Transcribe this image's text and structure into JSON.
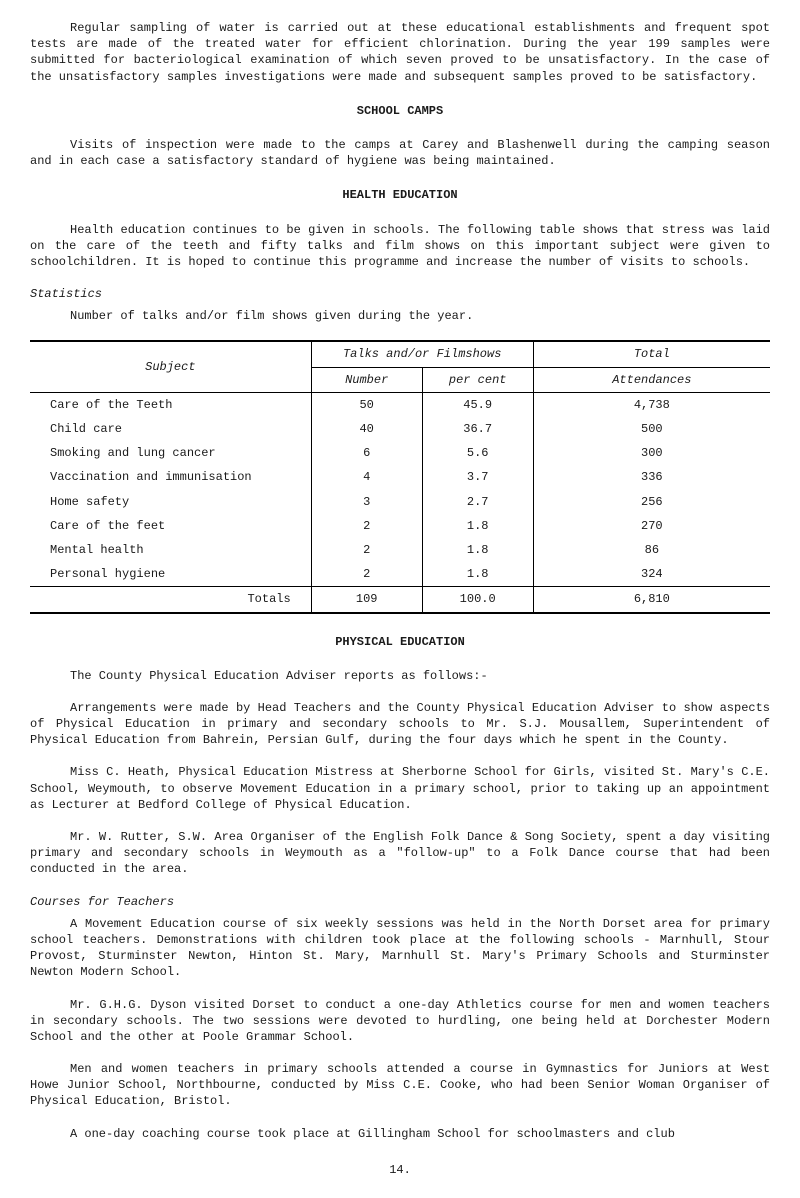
{
  "intro": {
    "p1": "Regular sampling of water is carried out at these educational establishments and frequent spot tests are made of the treated water for efficient chlorination. During the year 199 samples were submitted for bacteriological examination of which seven proved to be unsatisfactory. In the case of the unsatisfactory samples investigations were made and subsequent samples proved to be satisfactory."
  },
  "school_camps": {
    "header": "SCHOOL CAMPS",
    "p1": "Visits of inspection were made to the camps at Carey and Blashenwell during the camping season and in each case a satisfactory standard of hygiene was being maintained."
  },
  "health_education": {
    "header": "HEALTH EDUCATION",
    "p1": "Health education continues to be given in schools. The following table shows that stress was laid on the care of the teeth and fifty talks and film shows on this important subject were given to schoolchildren. It is hoped to continue this programme and increase the number of visits to schools.",
    "stats_label": "Statistics",
    "table_intro": "Number of talks and/or film shows given during the year."
  },
  "stats_table": {
    "columns": {
      "subject": "Subject",
      "talks_group": "Talks and/or Filmshows",
      "number": "Number",
      "per_cent": "per cent",
      "total": "Total",
      "attendances": "Attendances"
    },
    "rows": [
      {
        "subject": "Care of the Teeth",
        "number": "50",
        "percent": "45.9",
        "attendances": "4,738"
      },
      {
        "subject": "Child care",
        "number": "40",
        "percent": "36.7",
        "attendances": "500"
      },
      {
        "subject": "Smoking and lung cancer",
        "number": "6",
        "percent": "5.6",
        "attendances": "300"
      },
      {
        "subject": "Vaccination and immunisation",
        "number": "4",
        "percent": "3.7",
        "attendances": "336"
      },
      {
        "subject": "Home safety",
        "number": "3",
        "percent": "2.7",
        "attendances": "256"
      },
      {
        "subject": "Care of the feet",
        "number": "2",
        "percent": "1.8",
        "attendances": "270"
      },
      {
        "subject": "Mental health",
        "number": "2",
        "percent": "1.8",
        "attendances": "86"
      },
      {
        "subject": "Personal hygiene",
        "number": "2",
        "percent": "1.8",
        "attendances": "324"
      }
    ],
    "totals": {
      "label": "Totals",
      "number": "109",
      "percent": "100.0",
      "attendances": "6,810"
    }
  },
  "physical_education": {
    "header": "PHYSICAL EDUCATION",
    "p1": "The County Physical Education Adviser reports as follows:-",
    "p2": "Arrangements were made by Head Teachers and the County Physical Education Adviser to show aspects of Physical Education in primary and secondary schools to Mr. S.J. Mousallem, Superintendent of Physical Education from Bahrein, Persian Gulf, during the four days which he spent in the County.",
    "p3": "Miss C. Heath, Physical Education Mistress at Sherborne School for Girls, visited St. Mary's C.E. School, Weymouth, to observe Movement Education in a primary school, prior to taking up an appointment as Lecturer at Bedford College of Physical Education.",
    "p4": "Mr. W. Rutter, S.W. Area Organiser of the English Folk Dance & Song Society, spent a day visiting primary and secondary schools in Weymouth as a \"follow-up\" to a Folk Dance course that had been conducted in the area.",
    "courses_label": "Courses for Teachers",
    "p5": "A Movement Education course of six weekly sessions was held in the North Dorset area for primary school teachers. Demonstrations with children took place at the following schools - Marnhull, Stour Provost, Sturminster Newton, Hinton St. Mary, Marnhull St. Mary's Primary Schools and Sturminster Newton Modern School.",
    "p6": "Mr. G.H.G. Dyson visited Dorset to conduct a one-day Athletics course for men and women teachers in secondary schools. The two sessions were devoted to hurdling, one being held at Dorchester Modern School and the other at Poole Grammar School.",
    "p7": "Men and women teachers in primary schools attended a course in Gymnastics for Juniors at West Howe Junior School, Northbourne, conducted by Miss C.E. Cooke, who had been Senior Woman Organiser of Physical Education, Bristol.",
    "p8": "A one-day coaching course took place at Gillingham School for schoolmasters and club"
  },
  "page_number": "14."
}
